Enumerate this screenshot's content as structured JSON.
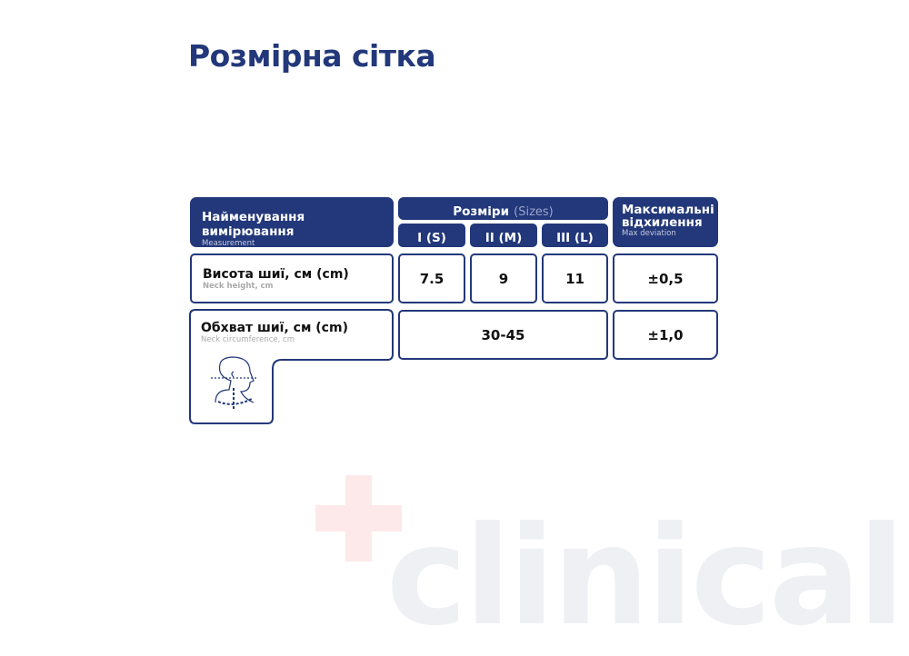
{
  "title": "Розмірна сітка",
  "header": {
    "measurement": "Найменування вимірювання",
    "measurement_en": "Measurement",
    "sizes": "Розміри",
    "sizes_en": "(Sizes)",
    "size_labels": [
      "I (S)",
      "II (M)",
      "III (L)"
    ],
    "deviation": "Максимальні відхилення",
    "deviation_en": "Max deviation"
  },
  "rows": [
    {
      "name": "Висота шиї, см (cm)",
      "name_en": "Neck height, cm",
      "values": [
        "7.5",
        "9",
        "11"
      ],
      "deviation": "±0,5"
    },
    {
      "name": "Обхват шиї, см (cm)",
      "name_en": "Neck circumference, cm",
      "value": "30-45",
      "deviation": "±1,0"
    }
  ],
  "watermark": "clinical",
  "colors": {
    "primary": "#23387a",
    "watermark_plus": "#fde9e9",
    "watermark_text": "#eef0f4"
  }
}
